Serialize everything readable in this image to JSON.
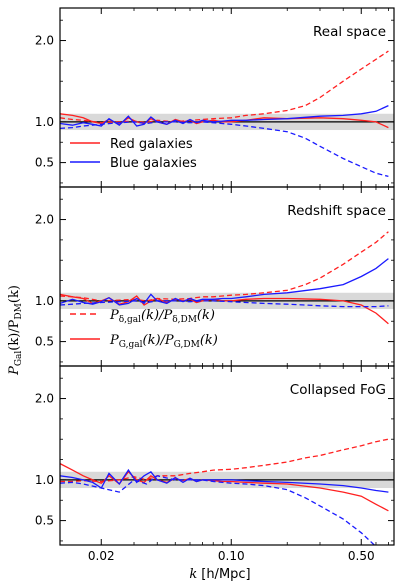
{
  "figure": {
    "xlabel": {
      "k": "k",
      "unit": "[h/Mpc]"
    },
    "ylabel": {
      "main": "P",
      "sub1": "Gal",
      "mid": "(k)/P",
      "sub2": "DM",
      "tail": "(k)"
    }
  },
  "colors": {
    "red": "#ff2020",
    "blue": "#1a1aff",
    "band": "#d9d9d9",
    "unity": "#000000"
  },
  "chart_data": [
    {
      "type": "line",
      "panel_label": "Real space",
      "xscale": "log",
      "xlim": [
        0.012,
        0.75
      ],
      "ylim": [
        0.2,
        2.4
      ],
      "x_ticks": [
        0.02,
        0.1,
        0.5
      ],
      "x_tick_labels": [
        "0.02",
        "0.10",
        "0.50"
      ],
      "y_ticks": [
        0.5,
        1.0,
        2.0
      ],
      "y_tick_labels": [
        "0.5",
        "1.0",
        "2.0"
      ],
      "reference_line": 1.0,
      "shaded_band": [
        0.9,
        1.1
      ],
      "legend": {
        "placement": "lower-left",
        "entries": [
          {
            "label": "Red galaxies",
            "color": "#ff2020",
            "style": "solid"
          },
          {
            "label": "Blue galaxies",
            "color": "#1a1aff",
            "style": "solid"
          }
        ]
      },
      "series": [
        {
          "name": "Red galaxies",
          "color": "#ff2020",
          "style": "solid",
          "x": [
            0.012,
            0.014,
            0.016,
            0.018,
            0.02,
            0.022,
            0.025,
            0.028,
            0.031,
            0.034,
            0.037,
            0.04,
            0.045,
            0.05,
            0.055,
            0.06,
            0.065,
            0.07,
            0.08,
            0.09,
            0.1,
            0.12,
            0.15,
            0.2,
            0.3,
            0.4,
            0.5,
            0.6,
            0.7
          ],
          "y": [
            1.1,
            1.08,
            1.05,
            1.0,
            0.98,
            1.03,
            0.97,
            1.05,
            1.0,
            0.98,
            1.04,
            1.0,
            0.97,
            1.03,
            1.0,
            1.02,
            0.98,
            1.0,
            1.02,
            1.0,
            1.0,
            1.02,
            1.05,
            1.04,
            1.05,
            1.04,
            1.02,
            1.0,
            0.93
          ]
        },
        {
          "color": "#ff2020",
          "style": "dashed",
          "x": [
            0.012,
            0.014,
            0.016,
            0.02,
            0.025,
            0.03,
            0.035,
            0.04,
            0.05,
            0.06,
            0.07,
            0.08,
            0.1,
            0.12,
            0.15,
            0.2,
            0.25,
            0.3,
            0.4,
            0.5,
            0.6,
            0.7
          ],
          "y": [
            1.05,
            1.03,
            1.02,
            0.99,
            1.0,
            1.01,
            0.99,
            1.02,
            1.0,
            1.02,
            1.03,
            1.04,
            1.05,
            1.08,
            1.1,
            1.14,
            1.2,
            1.3,
            1.5,
            1.65,
            1.77,
            1.87
          ]
        },
        {
          "name": "Blue galaxies",
          "color": "#1a1aff",
          "style": "solid",
          "x": [
            0.012,
            0.014,
            0.016,
            0.018,
            0.02,
            0.022,
            0.025,
            0.028,
            0.031,
            0.034,
            0.037,
            0.04,
            0.045,
            0.05,
            0.055,
            0.06,
            0.065,
            0.07,
            0.08,
            0.09,
            0.1,
            0.12,
            0.15,
            0.2,
            0.3,
            0.4,
            0.5,
            0.6,
            0.7
          ],
          "y": [
            0.98,
            0.96,
            0.99,
            0.97,
            0.95,
            1.04,
            0.96,
            1.07,
            0.95,
            0.97,
            1.06,
            1.0,
            0.97,
            1.02,
            0.98,
            1.03,
            0.99,
            1.02,
            1.0,
            1.01,
            1.02,
            1.02,
            1.03,
            1.04,
            1.07,
            1.08,
            1.1,
            1.13,
            1.2
          ]
        },
        {
          "color": "#1a1aff",
          "style": "dashed",
          "x": [
            0.012,
            0.014,
            0.016,
            0.02,
            0.025,
            0.03,
            0.035,
            0.04,
            0.05,
            0.06,
            0.07,
            0.08,
            0.1,
            0.12,
            0.15,
            0.2,
            0.25,
            0.3,
            0.4,
            0.5,
            0.6,
            0.7
          ],
          "y": [
            0.92,
            0.93,
            0.95,
            0.97,
            0.99,
            1.0,
            0.98,
            1.0,
            1.0,
            0.99,
            1.0,
            0.99,
            0.97,
            0.95,
            0.92,
            0.88,
            0.8,
            0.7,
            0.55,
            0.45,
            0.37,
            0.33
          ]
        }
      ]
    },
    {
      "type": "line",
      "panel_label": "Redshift space",
      "xscale": "log",
      "xlim": [
        0.012,
        0.75
      ],
      "ylim": [
        0.2,
        2.4
      ],
      "x_ticks": [
        0.02,
        0.1,
        0.5
      ],
      "x_tick_labels": [
        "0.02",
        "0.10",
        "0.50"
      ],
      "y_ticks": [
        0.5,
        1.0,
        2.0
      ],
      "y_tick_labels": [
        "0.5",
        "1.0",
        "2.0"
      ],
      "reference_line": 1.0,
      "shaded_band": [
        0.9,
        1.1
      ],
      "legend": {
        "placement": "lower-left",
        "entries": [
          {
            "label": "P_δ,gal(k)/P_δ,DM(k)",
            "color": "#ff2020",
            "style": "dashed",
            "parts": {
              "main": "P",
              "sub1": "δ,gal",
              "mid": "(k)/P",
              "sub2": "δ,DM",
              "tail": "(k)"
            }
          },
          {
            "label": "P_G,gal(k)/P_G,DM(k)",
            "color": "#ff2020",
            "style": "solid",
            "parts": {
              "main": "P",
              "sub1": "G,gal",
              "mid": "(k)/P",
              "sub2": "G,DM",
              "tail": "(k)"
            }
          }
        ]
      },
      "series": [
        {
          "color": "#ff2020",
          "style": "solid",
          "x": [
            0.012,
            0.014,
            0.016,
            0.018,
            0.02,
            0.022,
            0.025,
            0.028,
            0.031,
            0.034,
            0.037,
            0.04,
            0.045,
            0.05,
            0.055,
            0.06,
            0.065,
            0.07,
            0.08,
            0.09,
            0.1,
            0.12,
            0.15,
            0.2,
            0.3,
            0.4,
            0.5,
            0.6,
            0.7
          ],
          "y": [
            1.08,
            1.05,
            1.03,
            0.97,
            1.0,
            1.04,
            0.96,
            0.99,
            1.06,
            0.95,
            1.0,
            1.03,
            0.98,
            1.02,
            1.0,
            1.02,
            0.98,
            1.0,
            1.02,
            1.0,
            1.0,
            1.02,
            1.03,
            1.03,
            1.02,
            1.0,
            0.95,
            0.85,
            0.72
          ]
        },
        {
          "color": "#ff2020",
          "style": "dashed",
          "x": [
            0.012,
            0.014,
            0.016,
            0.02,
            0.025,
            0.03,
            0.035,
            0.04,
            0.05,
            0.06,
            0.07,
            0.08,
            0.1,
            0.12,
            0.15,
            0.2,
            0.25,
            0.3,
            0.4,
            0.5,
            0.6,
            0.7
          ],
          "y": [
            1.06,
            1.05,
            1.04,
            1.0,
            1.01,
            1.02,
            1.0,
            1.03,
            1.02,
            1.03,
            1.05,
            1.05,
            1.07,
            1.08,
            1.1,
            1.13,
            1.2,
            1.28,
            1.45,
            1.6,
            1.72,
            1.85
          ]
        },
        {
          "color": "#1a1aff",
          "style": "solid",
          "x": [
            0.012,
            0.014,
            0.016,
            0.018,
            0.02,
            0.022,
            0.025,
            0.028,
            0.031,
            0.034,
            0.037,
            0.04,
            0.045,
            0.05,
            0.055,
            0.06,
            0.065,
            0.07,
            0.08,
            0.09,
            0.1,
            0.12,
            0.15,
            0.2,
            0.3,
            0.4,
            0.5,
            0.6,
            0.7
          ],
          "y": [
            0.97,
            1.02,
            0.98,
            0.96,
            0.99,
            1.04,
            0.95,
            0.97,
            1.03,
            0.97,
            1.08,
            1.0,
            0.97,
            1.03,
            0.99,
            1.03,
            1.0,
            1.02,
            1.02,
            1.03,
            1.03,
            1.05,
            1.08,
            1.1,
            1.15,
            1.2,
            1.3,
            1.4,
            1.52
          ]
        },
        {
          "color": "#1a1aff",
          "style": "dashed",
          "x": [
            0.012,
            0.014,
            0.016,
            0.02,
            0.025,
            0.03,
            0.035,
            0.04,
            0.05,
            0.06,
            0.07,
            0.08,
            0.1,
            0.12,
            0.15,
            0.2,
            0.25,
            0.3,
            0.4,
            0.5,
            0.6,
            0.7
          ],
          "y": [
            0.95,
            0.96,
            0.97,
            0.98,
            0.99,
            1.0,
            0.98,
            1.0,
            1.0,
            0.99,
            1.0,
            1.0,
            0.99,
            0.98,
            0.97,
            0.96,
            0.95,
            0.94,
            0.93,
            0.93,
            0.93,
            0.94
          ]
        }
      ]
    },
    {
      "type": "line",
      "panel_label": "Collapsed FoG",
      "xscale": "log",
      "xlim": [
        0.012,
        0.75
      ],
      "ylim": [
        0.2,
        2.4
      ],
      "x_ticks": [
        0.02,
        0.1,
        0.5
      ],
      "x_tick_labels": [
        "0.02",
        "0.10",
        "0.50"
      ],
      "y_ticks": [
        0.5,
        1.0,
        2.0
      ],
      "y_tick_labels": [
        "0.5",
        "1.0",
        "2.0"
      ],
      "reference_line": 1.0,
      "shaded_band": [
        0.9,
        1.1
      ],
      "series": [
        {
          "color": "#ff2020",
          "style": "solid",
          "x": [
            0.012,
            0.014,
            0.016,
            0.018,
            0.02,
            0.022,
            0.025,
            0.028,
            0.031,
            0.034,
            0.037,
            0.04,
            0.045,
            0.05,
            0.055,
            0.06,
            0.065,
            0.07,
            0.08,
            0.09,
            0.1,
            0.12,
            0.15,
            0.2,
            0.3,
            0.4,
            0.5,
            0.6,
            0.7
          ],
          "y": [
            1.2,
            1.12,
            1.05,
            1.0,
            0.96,
            1.05,
            0.95,
            1.1,
            1.0,
            0.97,
            1.05,
            1.0,
            0.97,
            1.02,
            0.99,
            1.02,
            0.98,
            1.0,
            0.99,
            0.98,
            0.98,
            0.97,
            0.96,
            0.95,
            0.9,
            0.85,
            0.8,
            0.7,
            0.62
          ]
        },
        {
          "color": "#ff2020",
          "style": "dashed",
          "x": [
            0.012,
            0.014,
            0.016,
            0.02,
            0.025,
            0.03,
            0.035,
            0.04,
            0.05,
            0.06,
            0.07,
            0.08,
            0.1,
            0.12,
            0.15,
            0.2,
            0.25,
            0.3,
            0.4,
            0.5,
            0.6,
            0.7
          ],
          "y": [
            0.98,
            0.98,
            0.99,
            0.98,
            1.0,
            1.04,
            1.0,
            1.05,
            1.05,
            1.08,
            1.1,
            1.12,
            1.13,
            1.15,
            1.18,
            1.22,
            1.27,
            1.3,
            1.37,
            1.42,
            1.47,
            1.5
          ]
        },
        {
          "color": "#1a1aff",
          "style": "solid",
          "x": [
            0.012,
            0.014,
            0.016,
            0.018,
            0.02,
            0.022,
            0.025,
            0.028,
            0.031,
            0.034,
            0.037,
            0.04,
            0.045,
            0.05,
            0.055,
            0.06,
            0.065,
            0.07,
            0.08,
            0.09,
            0.1,
            0.12,
            0.15,
            0.2,
            0.3,
            0.4,
            0.5,
            0.6,
            0.7
          ],
          "y": [
            1.05,
            1.03,
            1.0,
            0.97,
            0.9,
            1.08,
            0.95,
            1.12,
            0.97,
            1.05,
            1.1,
            1.0,
            0.96,
            1.03,
            0.97,
            1.02,
            0.98,
            1.0,
            1.0,
            1.0,
            1.0,
            0.99,
            0.98,
            0.97,
            0.95,
            0.93,
            0.9,
            0.87,
            0.85
          ]
        },
        {
          "color": "#1a1aff",
          "style": "dashed",
          "x": [
            0.012,
            0.014,
            0.016,
            0.02,
            0.025,
            0.03,
            0.035,
            0.04,
            0.05,
            0.06,
            0.07,
            0.08,
            0.1,
            0.12,
            0.15,
            0.2,
            0.25,
            0.3,
            0.4,
            0.5,
            0.6,
            0.7
          ],
          "y": [
            0.96,
            0.97,
            0.95,
            0.9,
            0.85,
            1.0,
            0.95,
            1.05,
            1.0,
            1.0,
            1.0,
            0.98,
            0.96,
            0.95,
            0.93,
            0.88,
            0.78,
            0.68,
            0.52,
            0.35,
            0.18,
            0.05
          ]
        }
      ]
    }
  ]
}
